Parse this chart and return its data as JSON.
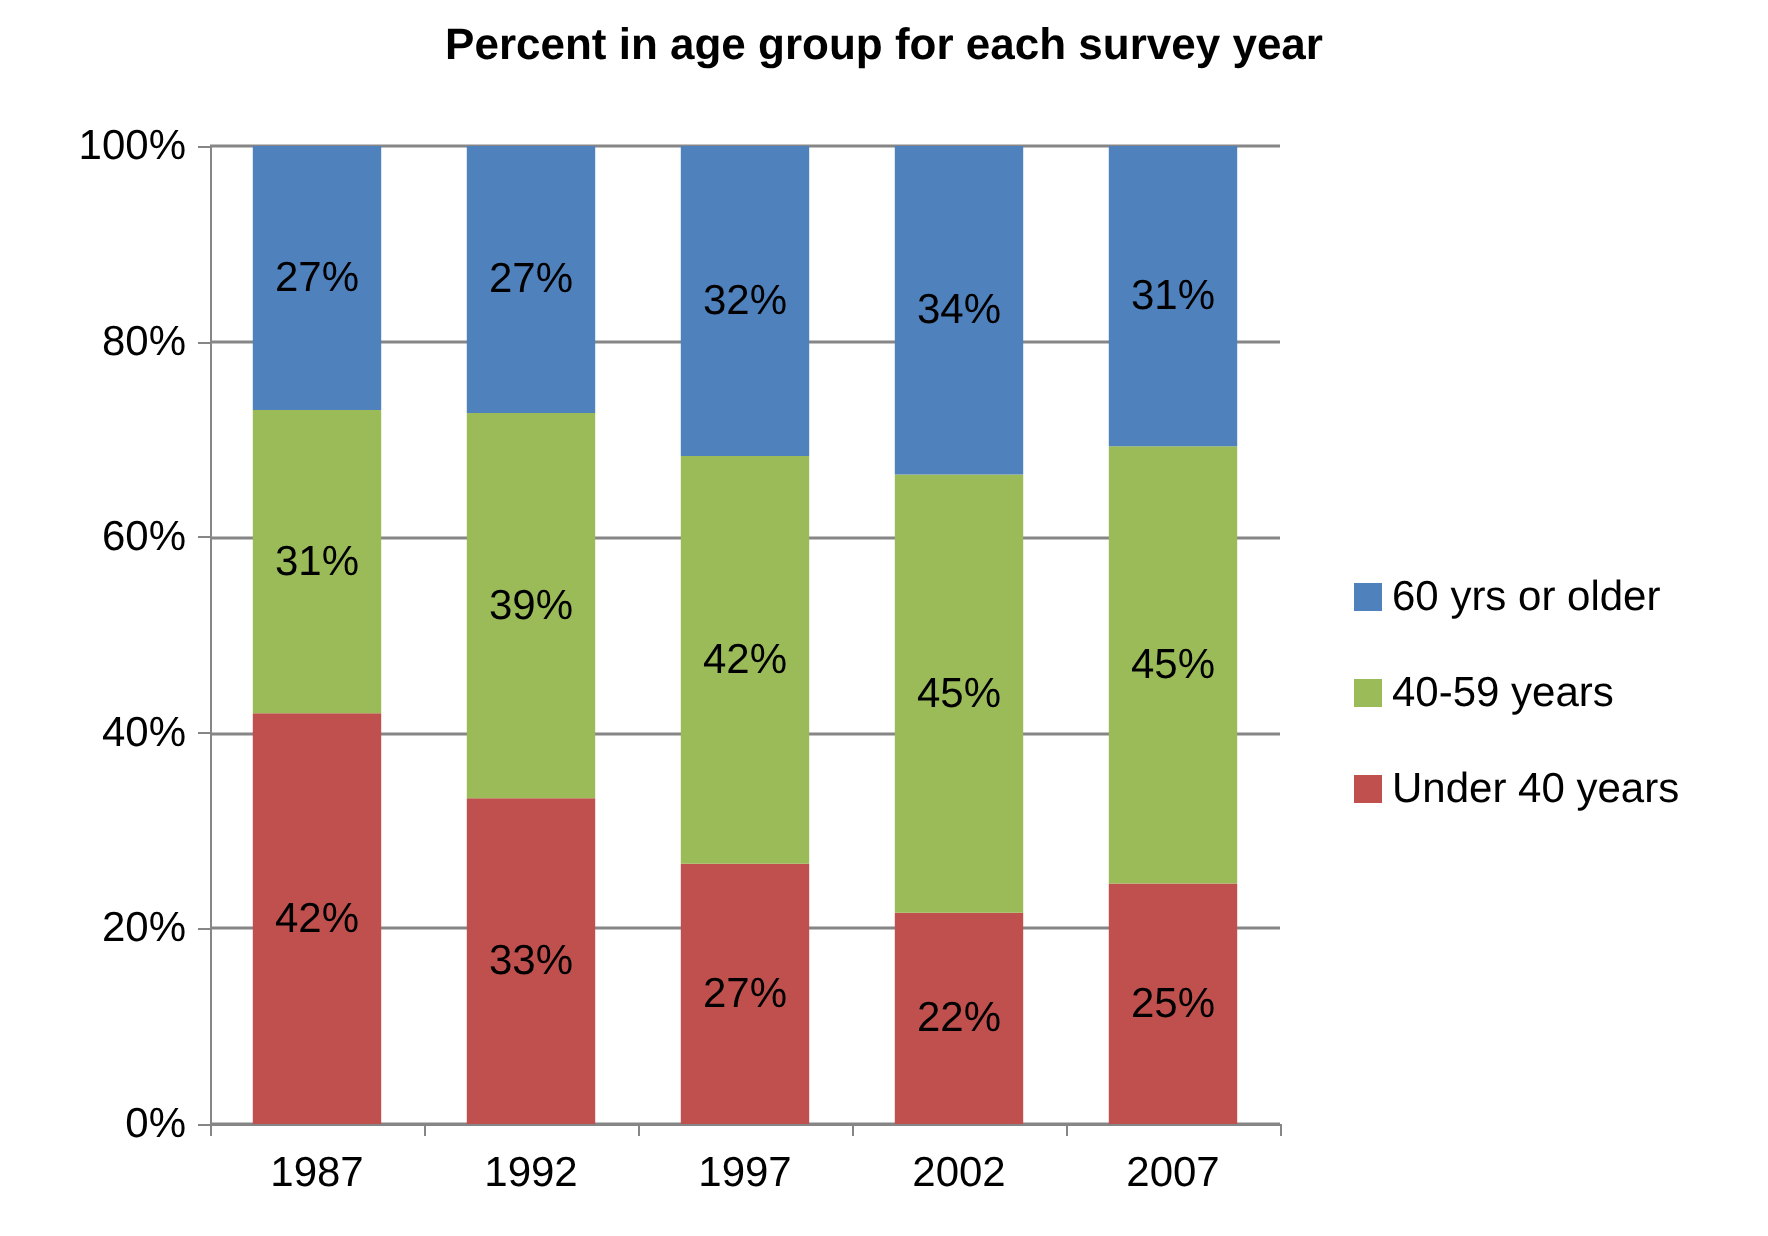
{
  "chart_data": {
    "type": "bar",
    "title": "Percent in age group for each survey year",
    "categories": [
      "1987",
      "1992",
      "1997",
      "2002",
      "2007"
    ],
    "stacked": true,
    "series": [
      {
        "name": "Under 40 years",
        "color": "#c0504d",
        "values": [
          42,
          33.3,
          26.6,
          21.6,
          24.6
        ],
        "value_labels": [
          "42%",
          "33%",
          "27%",
          "22%",
          "25%"
        ]
      },
      {
        "name": "40-59 years",
        "color": "#9bbb59",
        "values": [
          31,
          39.4,
          41.7,
          44.8,
          44.7
        ],
        "value_labels": [
          "31%",
          "39%",
          "42%",
          "45%",
          "45%"
        ]
      },
      {
        "name": "60 yrs or older",
        "color": "#4f81bd",
        "values": [
          27,
          27.3,
          31.7,
          33.6,
          30.7
        ],
        "value_labels": [
          "27%",
          "27%",
          "32%",
          "34%",
          "31%"
        ]
      }
    ],
    "ylim": [
      0,
      100
    ],
    "yticks": [
      {
        "value": 0,
        "label": "0%"
      },
      {
        "value": 20,
        "label": "20%"
      },
      {
        "value": 40,
        "label": "40%"
      },
      {
        "value": 60,
        "label": "60%"
      },
      {
        "value": 80,
        "label": "80%"
      },
      {
        "value": 100,
        "label": "100%"
      }
    ],
    "grid": true,
    "legend": "right"
  }
}
